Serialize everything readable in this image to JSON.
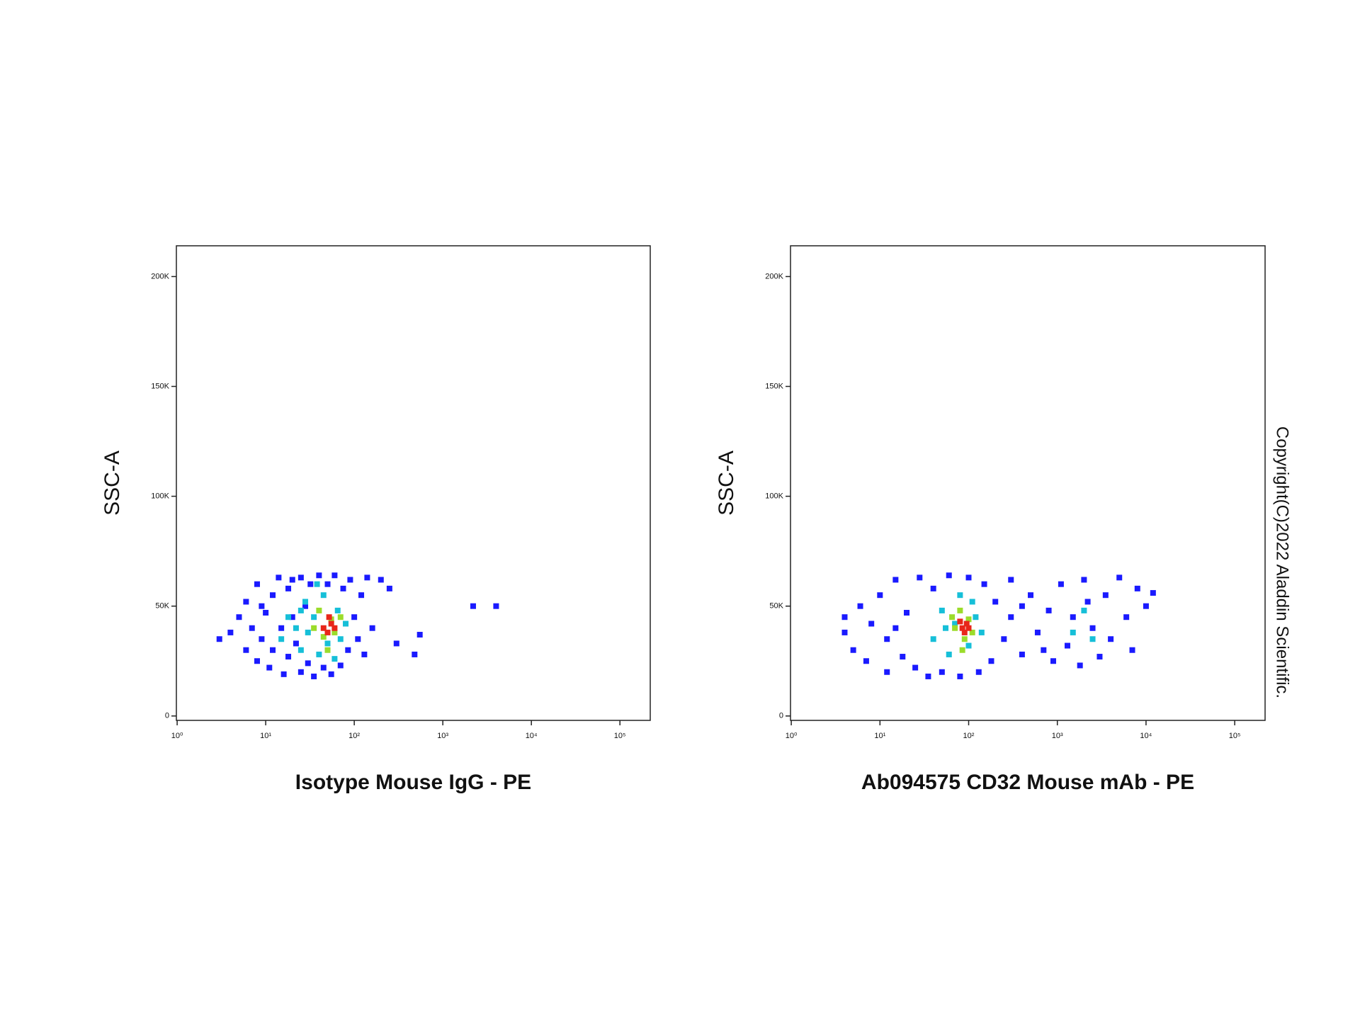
{
  "chart_data": [
    {
      "type": "scatter",
      "title": "Isotype Mouse IgG - PE",
      "y_label": "SSC-A",
      "log_x": true,
      "xlim": [
        0.98,
        220000
      ],
      "xticks": [
        {
          "value": 1,
          "label": "10⁰"
        },
        {
          "value": 10,
          "label": "10¹"
        },
        {
          "value": 100,
          "label": "10²"
        },
        {
          "value": 1000,
          "label": "10³"
        },
        {
          "value": 10000,
          "label": "10⁴"
        },
        {
          "value": 100000,
          "label": "10⁵"
        }
      ],
      "ylim": [
        -2000,
        214000
      ],
      "yticks": [
        0,
        {
          "value": 50000,
          "label": "50K"
        },
        {
          "value": 100000,
          "label": "100K"
        },
        {
          "value": 150000,
          "label": "150K"
        },
        {
          "value": 200000,
          "label": "200K"
        }
      ],
      "series": [
        {
          "color": "#1a1aff",
          "x": [
            4,
            5,
            6,
            6,
            7,
            8,
            8,
            9,
            10,
            11,
            12,
            12,
            14,
            15,
            16,
            18,
            18,
            20,
            22,
            25,
            25,
            28,
            30,
            32,
            35,
            40,
            45,
            50,
            55,
            60,
            70,
            75,
            85,
            90,
            100,
            110,
            120,
            140,
            160,
            200,
            250,
            130,
            300,
            480,
            550,
            2200,
            4000,
            3,
            9,
            20
          ],
          "values": [
            38000,
            45000,
            30000,
            52000,
            40000,
            25000,
            60000,
            35000,
            47000,
            22000,
            55000,
            30000,
            63000,
            40000,
            19000,
            27000,
            58000,
            45000,
            33000,
            63000,
            20000,
            50000,
            24000,
            60000,
            18000,
            64000,
            22000,
            60000,
            19000,
            64000,
            23000,
            58000,
            30000,
            62000,
            45000,
            35000,
            55000,
            63000,
            40000,
            62000,
            58000,
            28000,
            33000,
            28000,
            37000,
            50000,
            50000,
            35000,
            50000,
            62000
          ]
        },
        {
          "color": "#16bfd8",
          "x": [
            15,
            18,
            22,
            25,
            28,
            30,
            35,
            40,
            45,
            50,
            65,
            70,
            80,
            60,
            38,
            25
          ],
          "values": [
            35000,
            45000,
            40000,
            30000,
            52000,
            38000,
            45000,
            28000,
            55000,
            33000,
            48000,
            35000,
            42000,
            26000,
            60000,
            48000
          ]
        },
        {
          "color": "#9bdc2a",
          "x": [
            35,
            40,
            45,
            55,
            60,
            70,
            50
          ],
          "values": [
            40000,
            48000,
            36000,
            44000,
            38000,
            45000,
            30000
          ]
        },
        {
          "color": "#e8261a",
          "x": [
            45,
            55,
            50,
            60,
            52
          ],
          "values": [
            40000,
            42000,
            38000,
            40000,
            45000
          ]
        }
      ]
    },
    {
      "type": "scatter",
      "title": "Ab094575 CD32 Mouse mAb - PE",
      "y_label": "SSC-A",
      "log_x": true,
      "xlim": [
        0.98,
        220000
      ],
      "xticks": [
        {
          "value": 1,
          "label": "10⁰"
        },
        {
          "value": 10,
          "label": "10¹"
        },
        {
          "value": 100,
          "label": "10²"
        },
        {
          "value": 1000,
          "label": "10³"
        },
        {
          "value": 10000,
          "label": "10⁴"
        },
        {
          "value": 100000,
          "label": "10⁵"
        }
      ],
      "ylim": [
        -2000,
        214000
      ],
      "yticks": [
        0,
        {
          "value": 50000,
          "label": "50K"
        },
        {
          "value": 100000,
          "label": "100K"
        },
        {
          "value": 150000,
          "label": "150K"
        },
        {
          "value": 200000,
          "label": "200K"
        }
      ],
      "series": [
        {
          "color": "#1a1aff",
          "x": [
            4,
            4,
            5,
            6,
            7,
            8,
            10,
            12,
            12,
            15,
            18,
            20,
            25,
            28,
            35,
            40,
            50,
            60,
            80,
            100,
            130,
            150,
            180,
            200,
            250,
            300,
            400,
            500,
            600,
            800,
            900,
            1100,
            1300,
            1500,
            1800,
            2000,
            2500,
            3000,
            3500,
            4000,
            5000,
            6000,
            7000,
            8000,
            10000,
            12000,
            15,
            300,
            700,
            2200,
            400
          ],
          "values": [
            38000,
            45000,
            30000,
            50000,
            25000,
            42000,
            55000,
            20000,
            35000,
            62000,
            27000,
            47000,
            22000,
            63000,
            18000,
            58000,
            20000,
            64000,
            18000,
            63000,
            20000,
            60000,
            25000,
            52000,
            35000,
            45000,
            28000,
            55000,
            38000,
            48000,
            25000,
            60000,
            32000,
            45000,
            23000,
            62000,
            40000,
            27000,
            55000,
            35000,
            63000,
            45000,
            30000,
            58000,
            50000,
            56000,
            40000,
            62000,
            30000,
            52000,
            50000
          ]
        },
        {
          "color": "#16bfd8",
          "x": [
            40,
            50,
            60,
            70,
            80,
            100,
            120,
            140,
            110,
            55,
            1500,
            2500,
            2000
          ],
          "values": [
            35000,
            48000,
            28000,
            42000,
            55000,
            32000,
            45000,
            38000,
            52000,
            40000,
            38000,
            35000,
            48000
          ]
        },
        {
          "color": "#9bdc2a",
          "x": [
            70,
            80,
            90,
            100,
            110,
            85,
            65
          ],
          "values": [
            40000,
            48000,
            35000,
            44000,
            38000,
            30000,
            45000
          ]
        },
        {
          "color": "#e8261a",
          "x": [
            85,
            95,
            90,
            100,
            80
          ],
          "values": [
            40000,
            42000,
            38000,
            40000,
            43000
          ]
        }
      ]
    }
  ],
  "copyright": "Copyright(C)2022 Aladdin Scientific."
}
